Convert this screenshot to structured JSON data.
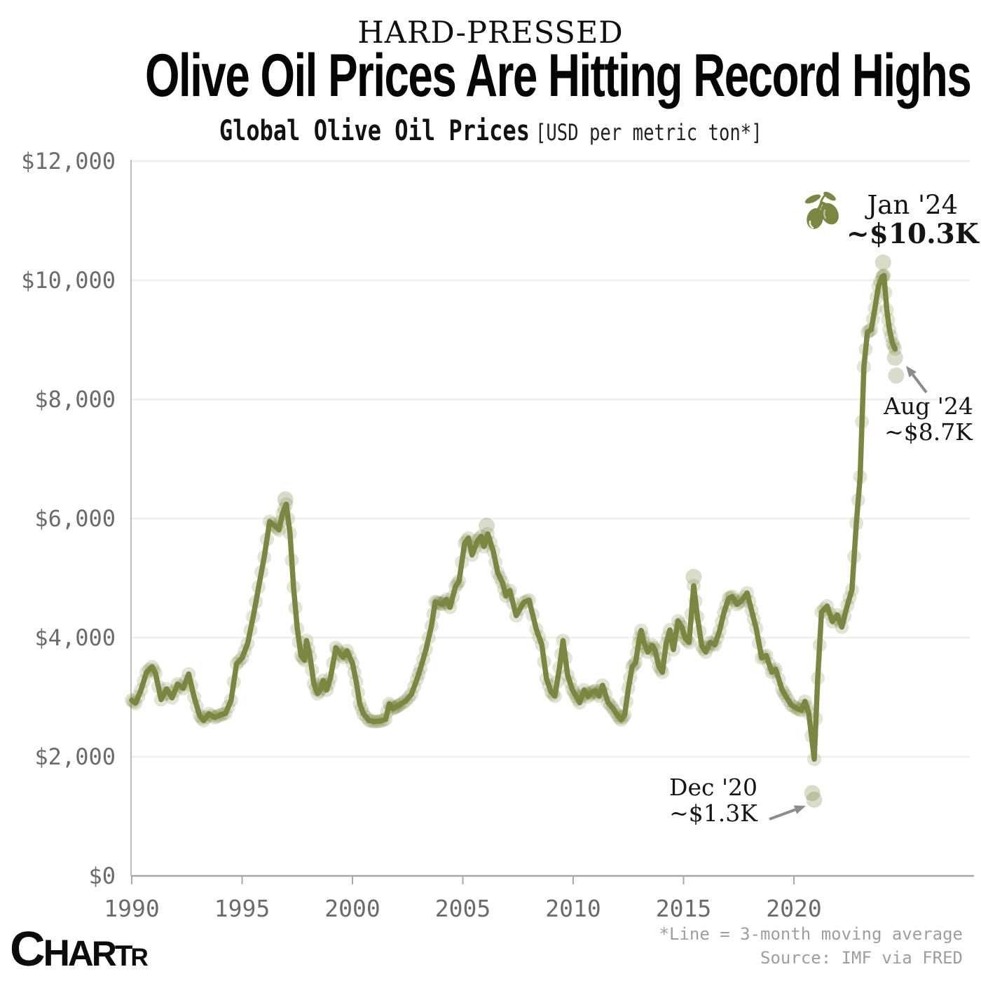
{
  "header": {
    "kicker": "HARD-PRESSED",
    "title": "Olive Oil Prices Are Hitting Record Highs",
    "subtitle_bold": "Global Olive Oil Prices",
    "subtitle_unit": "[USD per metric ton*]"
  },
  "footer": {
    "note": "*Line = 3-month moving average",
    "source": "Source: IMF via FRED"
  },
  "logo": {
    "letters": [
      "C",
      "H",
      "A",
      "R",
      "T",
      "R"
    ]
  },
  "annotations": {
    "jan24": {
      "line1": "Jan '24",
      "line2": "~$10.3K"
    },
    "aug24": {
      "line1": "Aug '24",
      "line2": "~$8.7K"
    },
    "dec20": {
      "line1": "Dec '20",
      "line2": "~$1.3K"
    }
  },
  "colors": {
    "line": "#7a8740",
    "scatter": "#6f7c33",
    "grid": "#f0efeb",
    "axis": "#a8a8a8",
    "spine": "#bdbdbd",
    "tick_text": "#6b6b6b",
    "arrow": "#8c8c8c",
    "text": "#111111"
  },
  "chart_data": {
    "type": "line",
    "title": "Global Olive Oil Prices",
    "ylabel": "USD per metric ton",
    "note": "Line = 3-month moving average",
    "source": "IMF via FRED",
    "xlim": [
      1989.8,
      2025.4
    ],
    "ylim": [
      0,
      12000
    ],
    "grid": "horizontal",
    "y_ticks": [
      {
        "value": 12000,
        "label": "$12,000"
      },
      {
        "value": 10000,
        "label": "$10,000"
      },
      {
        "value": 8000,
        "label": "$8,000"
      },
      {
        "value": 6000,
        "label": "$6,000"
      },
      {
        "value": 4000,
        "label": "$4,000"
      },
      {
        "value": 2000,
        "label": "$2,000"
      },
      {
        "value": 0,
        "label": "$0"
      }
    ],
    "x_ticks": [
      {
        "value": 1990,
        "label": "1990"
      },
      {
        "value": 1995,
        "label": "1995"
      },
      {
        "value": 2000,
        "label": "2000"
      },
      {
        "value": 2005,
        "label": "2005"
      },
      {
        "value": 2010,
        "label": "2010"
      },
      {
        "value": 2015,
        "label": "2015"
      },
      {
        "value": 2020,
        "label": "2020"
      }
    ],
    "series": {
      "name": "Global olive oil price, 3-month moving average (USD/metric ton)",
      "points": [
        [
          1990.0,
          2950
        ],
        [
          1990.17,
          2900
        ],
        [
          1990.42,
          3120
        ],
        [
          1990.67,
          3420
        ],
        [
          1990.92,
          3510
        ],
        [
          1991.08,
          3400
        ],
        [
          1991.33,
          2960
        ],
        [
          1991.58,
          3140
        ],
        [
          1991.83,
          2990
        ],
        [
          1992.08,
          3220
        ],
        [
          1992.33,
          3150
        ],
        [
          1992.58,
          3390
        ],
        [
          1992.83,
          3000
        ],
        [
          1993.08,
          2690
        ],
        [
          1993.25,
          2610
        ],
        [
          1993.5,
          2720
        ],
        [
          1993.75,
          2660
        ],
        [
          1994.0,
          2700
        ],
        [
          1994.25,
          2730
        ],
        [
          1994.5,
          2950
        ],
        [
          1994.75,
          3560
        ],
        [
          1995.0,
          3660
        ],
        [
          1995.25,
          3900
        ],
        [
          1995.5,
          4350
        ],
        [
          1995.75,
          4850
        ],
        [
          1996.0,
          5350
        ],
        [
          1996.25,
          5950
        ],
        [
          1996.5,
          5870
        ],
        [
          1996.67,
          5810
        ],
        [
          1996.83,
          6080
        ],
        [
          1997.0,
          6240
        ],
        [
          1997.17,
          5750
        ],
        [
          1997.33,
          4850
        ],
        [
          1997.5,
          4150
        ],
        [
          1997.67,
          3700
        ],
        [
          1997.83,
          3620
        ],
        [
          1997.92,
          3950
        ],
        [
          1998.08,
          3680
        ],
        [
          1998.25,
          3230
        ],
        [
          1998.42,
          3060
        ],
        [
          1998.58,
          3150
        ],
        [
          1998.67,
          3280
        ],
        [
          1998.83,
          3120
        ],
        [
          1999.0,
          3320
        ],
        [
          1999.25,
          3830
        ],
        [
          1999.42,
          3740
        ],
        [
          1999.58,
          3670
        ],
        [
          1999.75,
          3780
        ],
        [
          2000.0,
          3570
        ],
        [
          2000.17,
          3260
        ],
        [
          2000.33,
          2890
        ],
        [
          2000.5,
          2720
        ],
        [
          2000.75,
          2610
        ],
        [
          2001.0,
          2590
        ],
        [
          2001.25,
          2600
        ],
        [
          2001.5,
          2630
        ],
        [
          2001.67,
          2890
        ],
        [
          2001.83,
          2810
        ],
        [
          2002.0,
          2840
        ],
        [
          2002.17,
          2880
        ],
        [
          2002.42,
          2940
        ],
        [
          2002.67,
          3050
        ],
        [
          2002.92,
          3300
        ],
        [
          2003.08,
          3480
        ],
        [
          2003.33,
          3800
        ],
        [
          2003.58,
          4200
        ],
        [
          2003.75,
          4600
        ],
        [
          2003.92,
          4580
        ],
        [
          2004.08,
          4560
        ],
        [
          2004.25,
          4640
        ],
        [
          2004.42,
          4510
        ],
        [
          2004.67,
          4860
        ],
        [
          2004.83,
          4950
        ],
        [
          2005.08,
          5580
        ],
        [
          2005.25,
          5670
        ],
        [
          2005.42,
          5390
        ],
        [
          2005.67,
          5630
        ],
        [
          2005.83,
          5700
        ],
        [
          2005.96,
          5530
        ],
        [
          2006.13,
          5740
        ],
        [
          2006.38,
          5450
        ],
        [
          2006.58,
          5090
        ],
        [
          2006.79,
          4930
        ],
        [
          2006.96,
          4700
        ],
        [
          2007.13,
          4790
        ],
        [
          2007.42,
          4370
        ],
        [
          2007.75,
          4590
        ],
        [
          2008.0,
          4630
        ],
        [
          2008.33,
          4140
        ],
        [
          2008.58,
          3880
        ],
        [
          2008.79,
          3310
        ],
        [
          2009.0,
          3090
        ],
        [
          2009.17,
          3020
        ],
        [
          2009.38,
          3500
        ],
        [
          2009.54,
          3950
        ],
        [
          2009.75,
          3370
        ],
        [
          2009.96,
          3130
        ],
        [
          2010.13,
          3020
        ],
        [
          2010.29,
          2910
        ],
        [
          2010.5,
          3120
        ],
        [
          2010.67,
          3010
        ],
        [
          2010.83,
          3080
        ],
        [
          2011.0,
          3110
        ],
        [
          2011.17,
          3020
        ],
        [
          2011.33,
          3200
        ],
        [
          2011.58,
          2910
        ],
        [
          2011.79,
          2820
        ],
        [
          2012.0,
          2700
        ],
        [
          2012.17,
          2620
        ],
        [
          2012.33,
          2700
        ],
        [
          2012.5,
          3150
        ],
        [
          2012.67,
          3510
        ],
        [
          2012.83,
          3580
        ],
        [
          2012.96,
          3900
        ],
        [
          2013.08,
          4120
        ],
        [
          2013.21,
          3910
        ],
        [
          2013.38,
          3760
        ],
        [
          2013.58,
          3870
        ],
        [
          2013.71,
          3790
        ],
        [
          2013.88,
          3520
        ],
        [
          2014.04,
          3420
        ],
        [
          2014.21,
          3900
        ],
        [
          2014.38,
          4130
        ],
        [
          2014.54,
          3800
        ],
        [
          2014.75,
          4280
        ],
        [
          2014.92,
          4180
        ],
        [
          2015.08,
          3990
        ],
        [
          2015.25,
          3920
        ],
        [
          2015.46,
          4870
        ],
        [
          2015.63,
          4350
        ],
        [
          2015.83,
          3860
        ],
        [
          2016.0,
          3760
        ],
        [
          2016.21,
          3920
        ],
        [
          2016.42,
          3880
        ],
        [
          2016.63,
          4110
        ],
        [
          2016.83,
          4420
        ],
        [
          2017.04,
          4660
        ],
        [
          2017.21,
          4690
        ],
        [
          2017.42,
          4560
        ],
        [
          2017.63,
          4620
        ],
        [
          2017.88,
          4750
        ],
        [
          2018.08,
          4460
        ],
        [
          2018.29,
          4160
        ],
        [
          2018.54,
          3660
        ],
        [
          2018.75,
          3700
        ],
        [
          2019.0,
          3420
        ],
        [
          2019.17,
          3470
        ],
        [
          2019.46,
          3130
        ],
        [
          2019.63,
          3020
        ],
        [
          2019.88,
          2870
        ],
        [
          2020.13,
          2810
        ],
        [
          2020.33,
          2780
        ],
        [
          2020.5,
          2930
        ],
        [
          2020.67,
          2740
        ],
        [
          2020.92,
          1960
        ],
        [
          2021.08,
          3320
        ],
        [
          2021.25,
          4430
        ],
        [
          2021.5,
          4530
        ],
        [
          2021.75,
          4270
        ],
        [
          2021.96,
          4380
        ],
        [
          2022.17,
          4180
        ],
        [
          2022.42,
          4540
        ],
        [
          2022.63,
          4800
        ],
        [
          2022.83,
          5920
        ],
        [
          2023.0,
          6700
        ],
        [
          2023.17,
          8550
        ],
        [
          2023.33,
          9130
        ],
        [
          2023.5,
          9170
        ],
        [
          2023.67,
          9530
        ],
        [
          2023.83,
          9900
        ],
        [
          2024.0,
          10060
        ],
        [
          2024.08,
          10080
        ],
        [
          2024.21,
          9500
        ],
        [
          2024.33,
          9170
        ],
        [
          2024.46,
          8950
        ],
        [
          2024.58,
          8850
        ]
      ]
    },
    "scatter_outliers": [
      {
        "x": 2024.04,
        "y": 10300,
        "label": "Jan '24 ~$10.3K"
      },
      {
        "x": 2020.83,
        "y": 1390,
        "label": "Dec '20 ~$1.3K"
      },
      {
        "x": 2020.92,
        "y": 1280,
        "label": "Dec '20 ~$1.3K"
      },
      {
        "x": 2024.58,
        "y": 8700,
        "label": "Aug '24 ~$8.7K"
      },
      {
        "x": 2024.63,
        "y": 8400,
        "label": ""
      },
      {
        "x": 2015.46,
        "y": 5020,
        "label": ""
      },
      {
        "x": 1996.96,
        "y": 6320,
        "label": ""
      },
      {
        "x": 2006.08,
        "y": 5880,
        "label": ""
      }
    ]
  }
}
